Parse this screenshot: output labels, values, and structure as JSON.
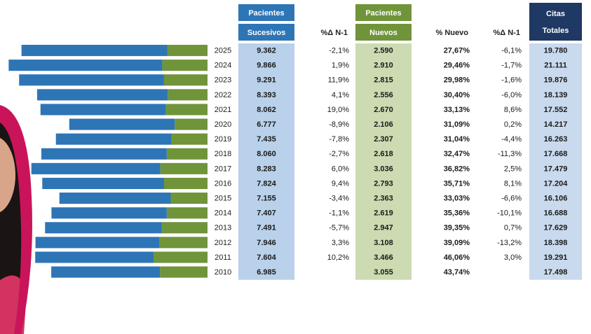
{
  "chart_data": {
    "type": "bar",
    "orientation": "horizontal",
    "stacked": true,
    "categories": [
      "2025",
      "2024",
      "2023",
      "2022",
      "2021",
      "2020",
      "2019",
      "2018",
      "2017",
      "2016",
      "2015",
      "2014",
      "2013",
      "2012",
      "2011",
      "2010"
    ],
    "series": [
      {
        "name": "Sucesivos",
        "group": "Pacientes",
        "color": "#2e75b6",
        "values": [
          9362,
          9866,
          9291,
          8393,
          8062,
          6777,
          7435,
          8060,
          8283,
          7824,
          7155,
          7407,
          7491,
          7946,
          7604,
          6985
        ],
        "value_labels": [
          "9.362",
          "9.866",
          "9.291",
          "8.393",
          "8.062",
          "6.777",
          "7.435",
          "8.060",
          "8.283",
          "7.824",
          "7.155",
          "7.407",
          "7.491",
          "7.946",
          "7.604",
          "6.985"
        ]
      },
      {
        "name": "Nuevos",
        "group": "Pacientes",
        "color": "#70943a",
        "values": [
          2590,
          2910,
          2815,
          2556,
          2670,
          2106,
          2307,
          2618,
          3036,
          2793,
          2363,
          2619,
          2947,
          3108,
          3466,
          3055
        ],
        "value_labels": [
          "2.590",
          "2.910",
          "2.815",
          "2.556",
          "2.670",
          "2.106",
          "2.307",
          "2.618",
          "3.036",
          "2.793",
          "2.363",
          "2.619",
          "2.947",
          "3.108",
          "3.466",
          "3.055"
        ]
      }
    ],
    "columns": [
      {
        "name": "%Δ N-1",
        "values": [
          -2.1,
          1.9,
          11.9,
          4.1,
          19.0,
          -8.9,
          -7.8,
          -2.7,
          6.0,
          9.4,
          -3.4,
          -1.1,
          -5.7,
          3.3,
          10.2,
          null
        ],
        "value_labels": [
          "-2,1%",
          "1,9%",
          "11,9%",
          "4,1%",
          "19,0%",
          "-8,9%",
          "-7,8%",
          "-2,7%",
          "6,0%",
          "9,4%",
          "-3,4%",
          "-1,1%",
          "-5,7%",
          "3,3%",
          "10,2%",
          null
        ]
      },
      {
        "name": "% Nuevo",
        "values": [
          27.67,
          29.46,
          29.98,
          30.4,
          33.13,
          31.09,
          31.04,
          32.47,
          36.82,
          35.71,
          33.03,
          35.36,
          39.35,
          39.09,
          46.06,
          43.74
        ],
        "value_labels": [
          "27,67%",
          "29,46%",
          "29,98%",
          "30,40%",
          "33,13%",
          "31,09%",
          "31,04%",
          "32,47%",
          "36,82%",
          "35,71%",
          "33,03%",
          "35,36%",
          "39,35%",
          "39,09%",
          "46,06%",
          "43,74%"
        ]
      },
      {
        "name": "%Δ N-1",
        "values": [
          -6.1,
          -1.7,
          -1.6,
          -6.0,
          8.6,
          0.2,
          -4.4,
          -11.3,
          2.5,
          8.1,
          -6.6,
          -10.1,
          0.7,
          -13.2,
          3.0,
          null
        ],
        "value_labels": [
          "-6,1%",
          "-1,7%",
          "-1,6%",
          "-6,0%",
          "8,6%",
          "0,2%",
          "-4,4%",
          "-11,3%",
          "2,5%",
          "8,1%",
          "-6,6%",
          "-10,1%",
          "0,7%",
          "-13,2%",
          "3,0%",
          null
        ]
      },
      {
        "name": "Totales",
        "group": "Citas",
        "values": [
          19780,
          21111,
          19876,
          18139,
          17552,
          14217,
          16263,
          17668,
          17479,
          17204,
          16106,
          16688,
          17629,
          18398,
          19291,
          17498
        ],
        "value_labels": [
          "19.780",
          "21.111",
          "19.876",
          "18.139",
          "17.552",
          "14.217",
          "16.263",
          "17.668",
          "17.479",
          "17.204",
          "16.106",
          "16.688",
          "17.629",
          "18.398",
          "19.291",
          "17.498"
        ]
      }
    ]
  }
}
